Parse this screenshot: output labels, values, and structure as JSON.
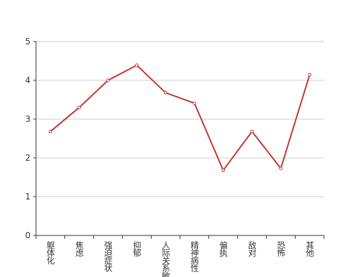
{
  "chart_data": {
    "type": "line",
    "categories": [
      "躯体化",
      "焦虑",
      "强迫症状",
      "抑郁",
      "人际关系敏感",
      "精神病性",
      "偏执",
      "敌对",
      "恐怖",
      "其他"
    ],
    "values": [
      2.68,
      3.3,
      4.0,
      4.39,
      3.68,
      3.41,
      1.68,
      2.68,
      1.73,
      4.14
    ],
    "color": "#c23531",
    "ylim": [
      0,
      5
    ],
    "yticks": [
      0,
      1,
      2,
      3,
      4,
      5
    ],
    "grid": true
  }
}
